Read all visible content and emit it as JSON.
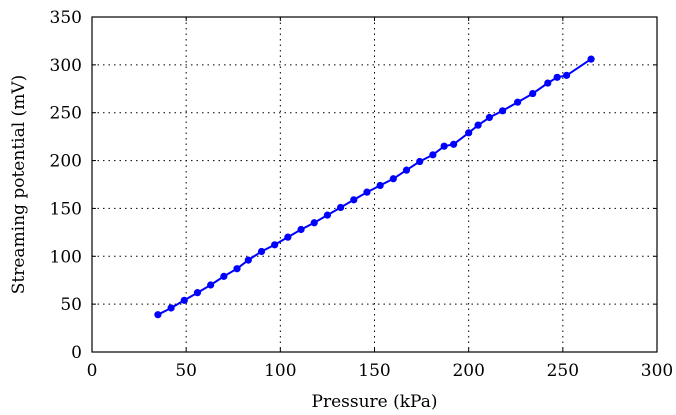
{
  "chart_data": {
    "type": "line",
    "xlabel": "Pressure (kPa)",
    "ylabel": "Streaming potential (mV)",
    "xlim": [
      0,
      300
    ],
    "ylim": [
      0,
      350
    ],
    "xticks": [
      0,
      50,
      100,
      150,
      200,
      250,
      300
    ],
    "yticks": [
      0,
      50,
      100,
      150,
      200,
      250,
      300,
      350
    ],
    "grid": true,
    "series": [
      {
        "color": "#0000ff",
        "marker": "circle",
        "x": [
          35,
          42,
          49,
          56,
          63,
          70,
          77,
          83,
          90,
          97,
          104,
          111,
          118,
          125,
          132,
          139,
          146,
          153,
          160,
          167,
          174,
          181,
          187,
          192,
          200,
          205,
          211,
          218,
          226,
          234,
          242,
          247,
          252,
          265
        ],
        "y": [
          39,
          46,
          54,
          62,
          70,
          79,
          87,
          96,
          105,
          112,
          120,
          128,
          135,
          143,
          151,
          159,
          167,
          174,
          181,
          190,
          199,
          206,
          215,
          217,
          229,
          237,
          245,
          252,
          261,
          270,
          281,
          287,
          289,
          306
        ]
      }
    ]
  }
}
